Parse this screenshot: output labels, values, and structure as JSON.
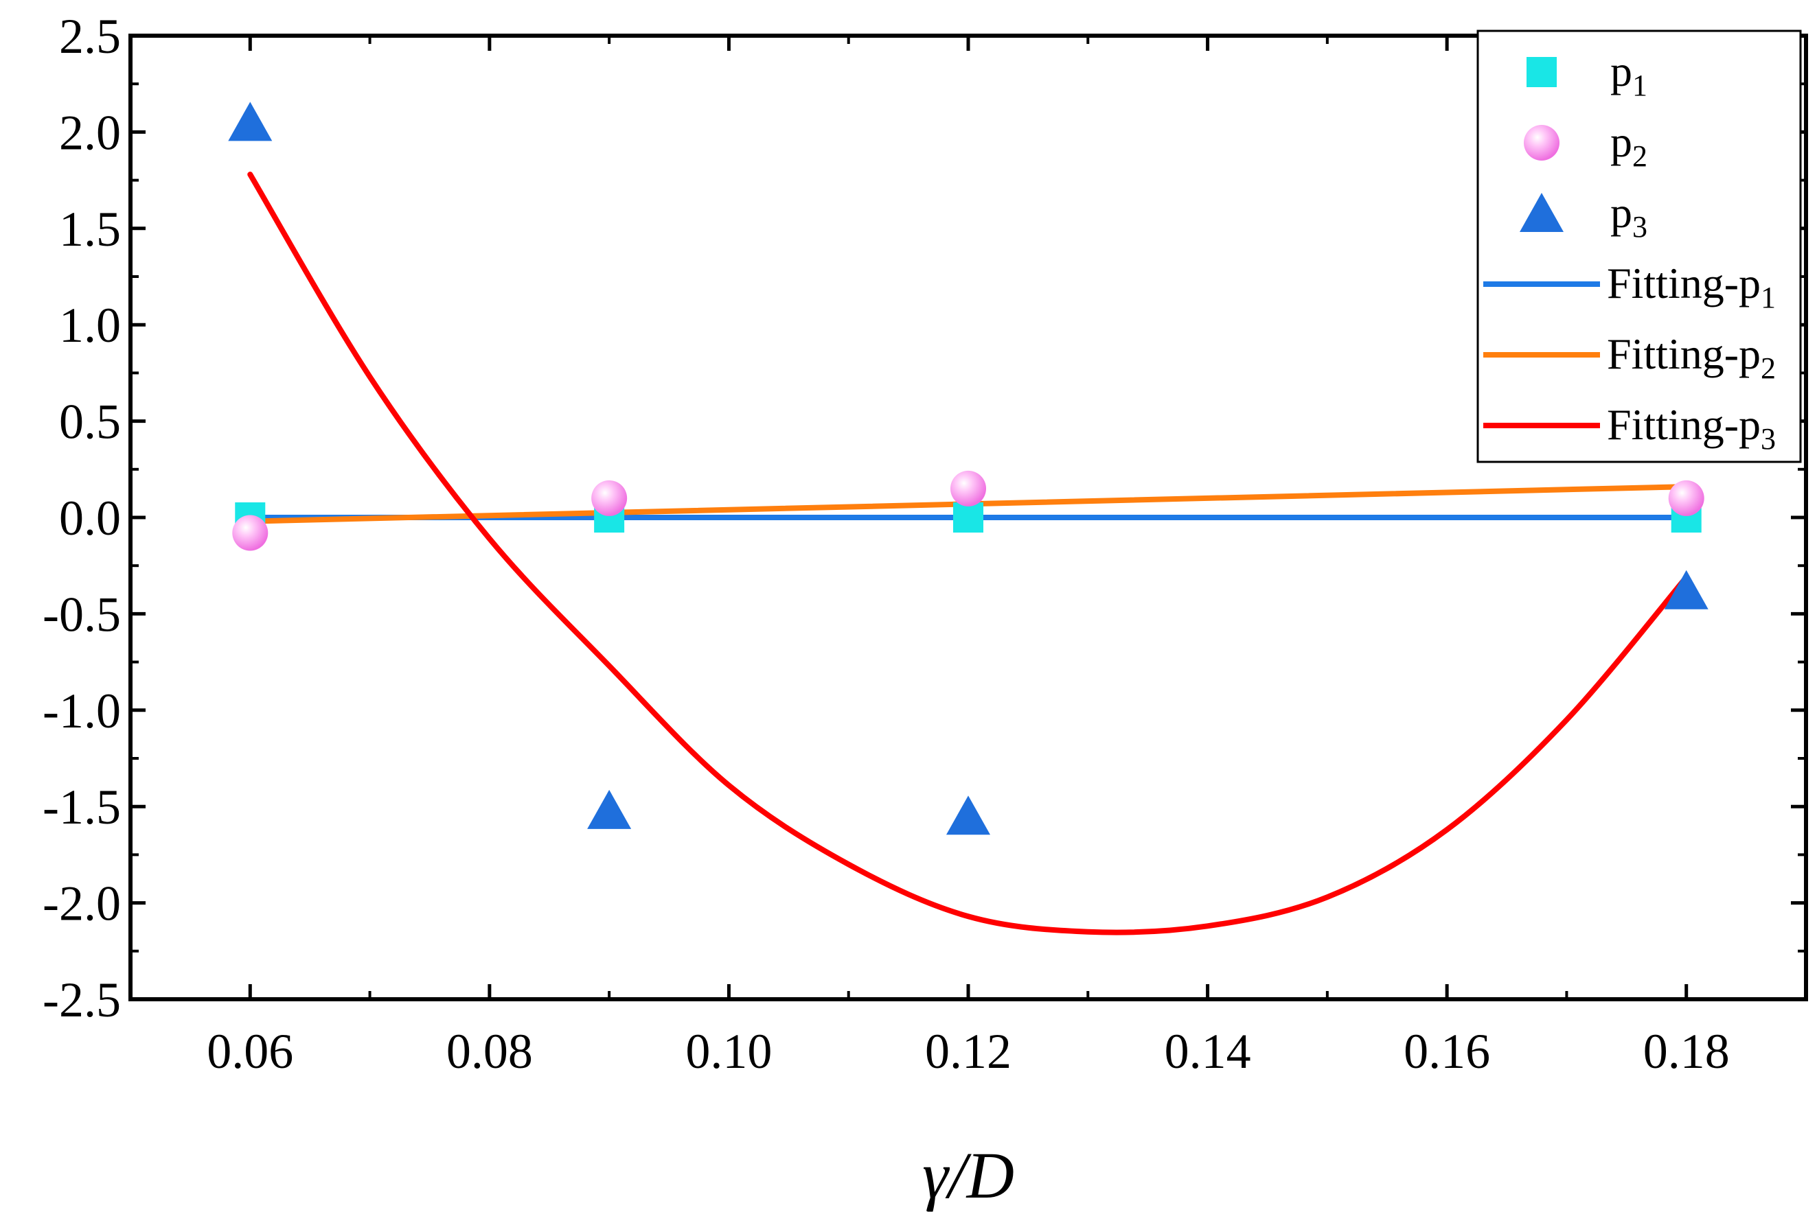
{
  "chart_data": {
    "type": "scatter",
    "title": "",
    "xlabel": "γ/D",
    "ylabel": "",
    "xlim": [
      0.05,
      0.19
    ],
    "ylim": [
      -2.5,
      2.5
    ],
    "x_ticks": [
      0.06,
      0.08,
      0.1,
      0.12,
      0.14,
      0.16,
      0.18
    ],
    "x_tick_labels": [
      "0.06",
      "0.08",
      "0.10",
      "0.12",
      "0.14",
      "0.16",
      "0.18"
    ],
    "y_ticks": [
      2.5,
      2.0,
      1.5,
      1.0,
      0.5,
      0.0,
      -0.5,
      -1.0,
      -1.5,
      -2.0,
      -2.5
    ],
    "y_tick_labels": [
      "2.5",
      "2.0",
      "1.5",
      "1.0",
      "0.5",
      "0.0",
      "-0.5",
      "-1.0",
      "-1.5",
      "-2.0",
      "-2.5"
    ],
    "series": [
      {
        "name": "p",
        "sub": "1",
        "kind": "scatter",
        "marker": "square",
        "color": "#19e6e6",
        "x": [
          0.06,
          0.09,
          0.12,
          0.18
        ],
        "y": [
          0.0,
          0.0,
          0.0,
          0.0
        ]
      },
      {
        "name": "p",
        "sub": "2",
        "kind": "scatter",
        "marker": "sphere",
        "color": "#ff88f0",
        "x": [
          0.06,
          0.09,
          0.12,
          0.18
        ],
        "y": [
          -0.08,
          0.1,
          0.15,
          0.1
        ]
      },
      {
        "name": "p",
        "sub": "3",
        "kind": "scatter",
        "marker": "triangle",
        "color": "#1f6fdc",
        "x": [
          0.06,
          0.09,
          0.12,
          0.18
        ],
        "y": [
          2.05,
          -1.52,
          -1.55,
          -0.38
        ]
      },
      {
        "name": "Fitting-p",
        "sub": "1",
        "kind": "line",
        "color": "#1e7ae6",
        "x": [
          0.06,
          0.18
        ],
        "y": [
          0.0,
          0.0
        ]
      },
      {
        "name": "Fitting-p",
        "sub": "2",
        "kind": "line",
        "color": "#ff7f0e",
        "x": [
          0.06,
          0.18
        ],
        "y": [
          -0.02,
          0.16
        ]
      },
      {
        "name": "Fitting-p",
        "sub": "3",
        "kind": "line",
        "color": "#ff0000",
        "x": [
          0.06,
          0.07,
          0.08,
          0.09,
          0.1,
          0.11,
          0.12,
          0.13,
          0.14,
          0.15,
          0.16,
          0.17,
          0.18
        ],
        "y": [
          1.78,
          0.73,
          -0.11,
          -0.77,
          -1.39,
          -1.8,
          -2.07,
          -2.15,
          -2.12,
          -1.97,
          -1.62,
          -1.05,
          -0.31
        ]
      }
    ],
    "legend_position": "top-right"
  }
}
